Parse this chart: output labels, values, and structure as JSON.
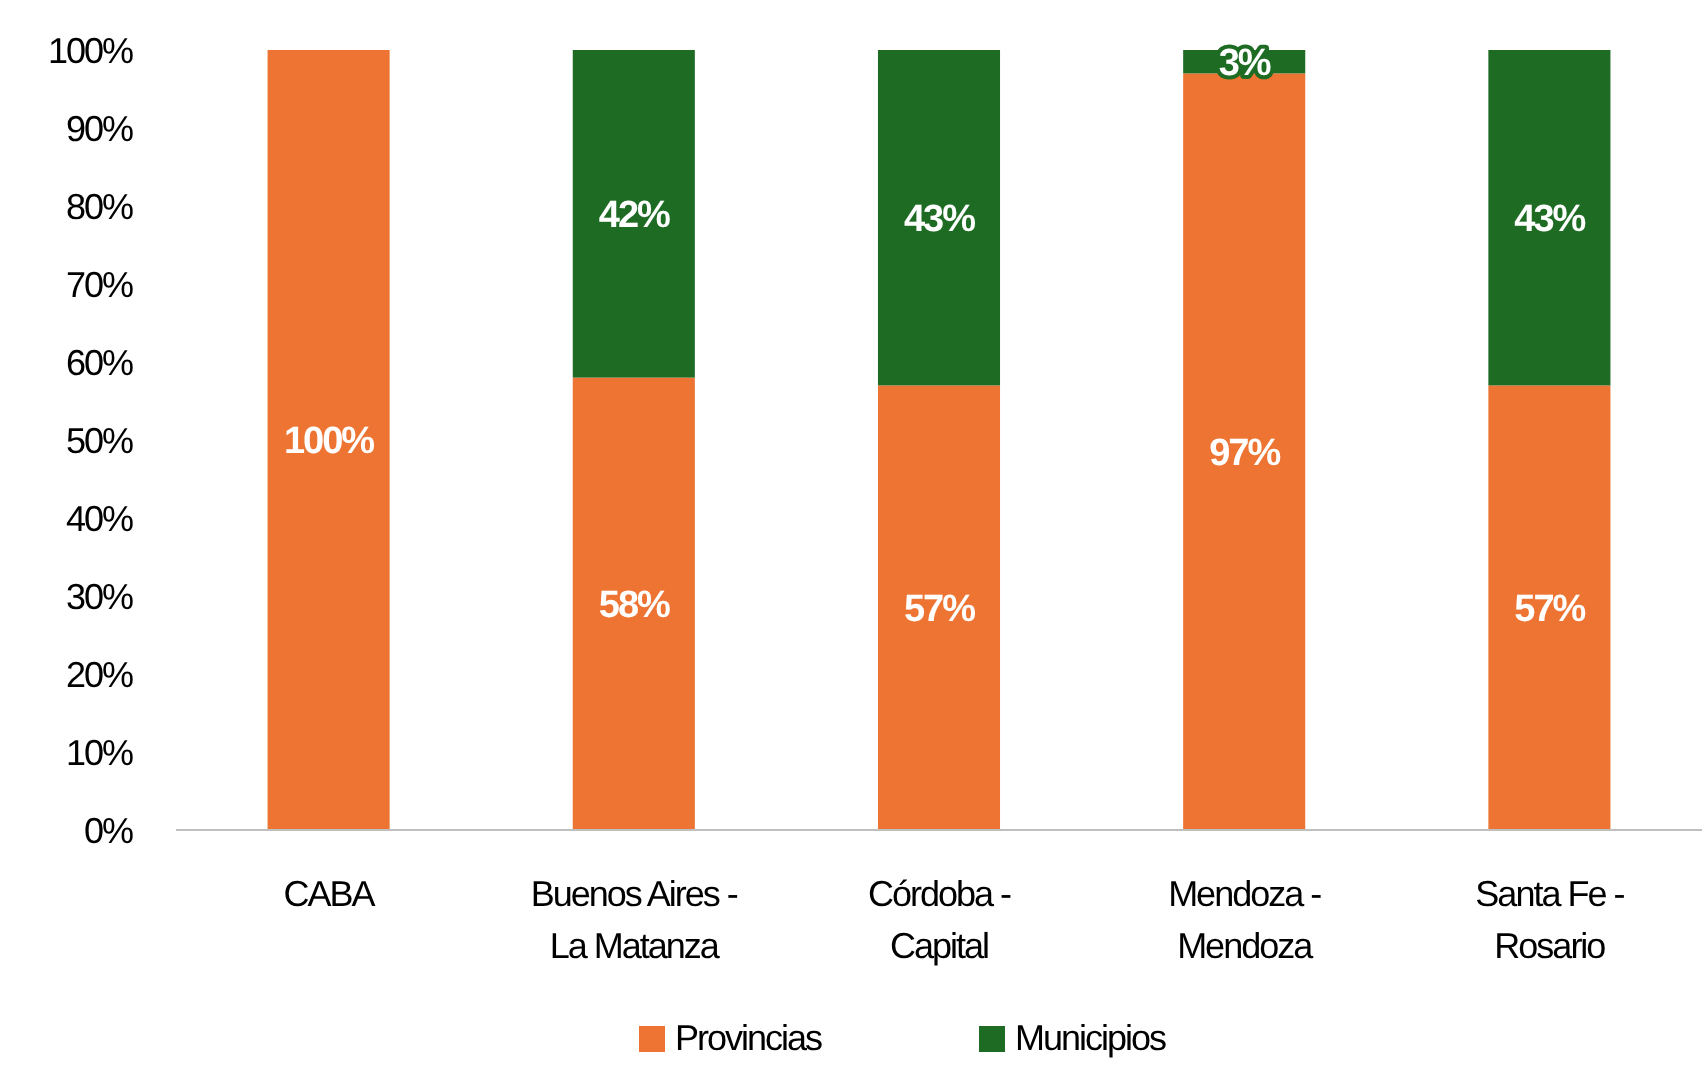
{
  "chart_data": {
    "type": "bar",
    "stacked": true,
    "categories": [
      "CABA",
      "Buenos Aires - La Matanza",
      "Córdoba - Capital",
      "Mendoza - Mendoza",
      "Santa Fe - Rosario"
    ],
    "series": [
      {
        "name": "Provincias",
        "color": "#ed7432",
        "values": [
          100,
          58,
          57,
          97,
          57
        ],
        "value_labels": [
          "100%",
          "58%",
          "57%",
          "97%",
          "57%"
        ]
      },
      {
        "name": "Municipios",
        "color": "#1e6b24",
        "values": [
          0,
          42,
          43,
          3,
          43
        ],
        "value_labels": [
          null,
          "42%",
          "43%",
          "3%",
          "43%"
        ]
      }
    ],
    "ylim": [
      0,
      100
    ],
    "yticks": [
      {
        "value": 0,
        "label": "0%"
      },
      {
        "value": 10,
        "label": "10%"
      },
      {
        "value": 20,
        "label": "20%"
      },
      {
        "value": 30,
        "label": "30%"
      },
      {
        "value": 40,
        "label": "40%"
      },
      {
        "value": 50,
        "label": "50%"
      },
      {
        "value": 60,
        "label": "60%"
      },
      {
        "value": 70,
        "label": "70%"
      },
      {
        "value": 80,
        "label": "80%"
      },
      {
        "value": 90,
        "label": "90%"
      },
      {
        "value": 100,
        "label": "100%"
      }
    ],
    "legend": "bottom"
  }
}
